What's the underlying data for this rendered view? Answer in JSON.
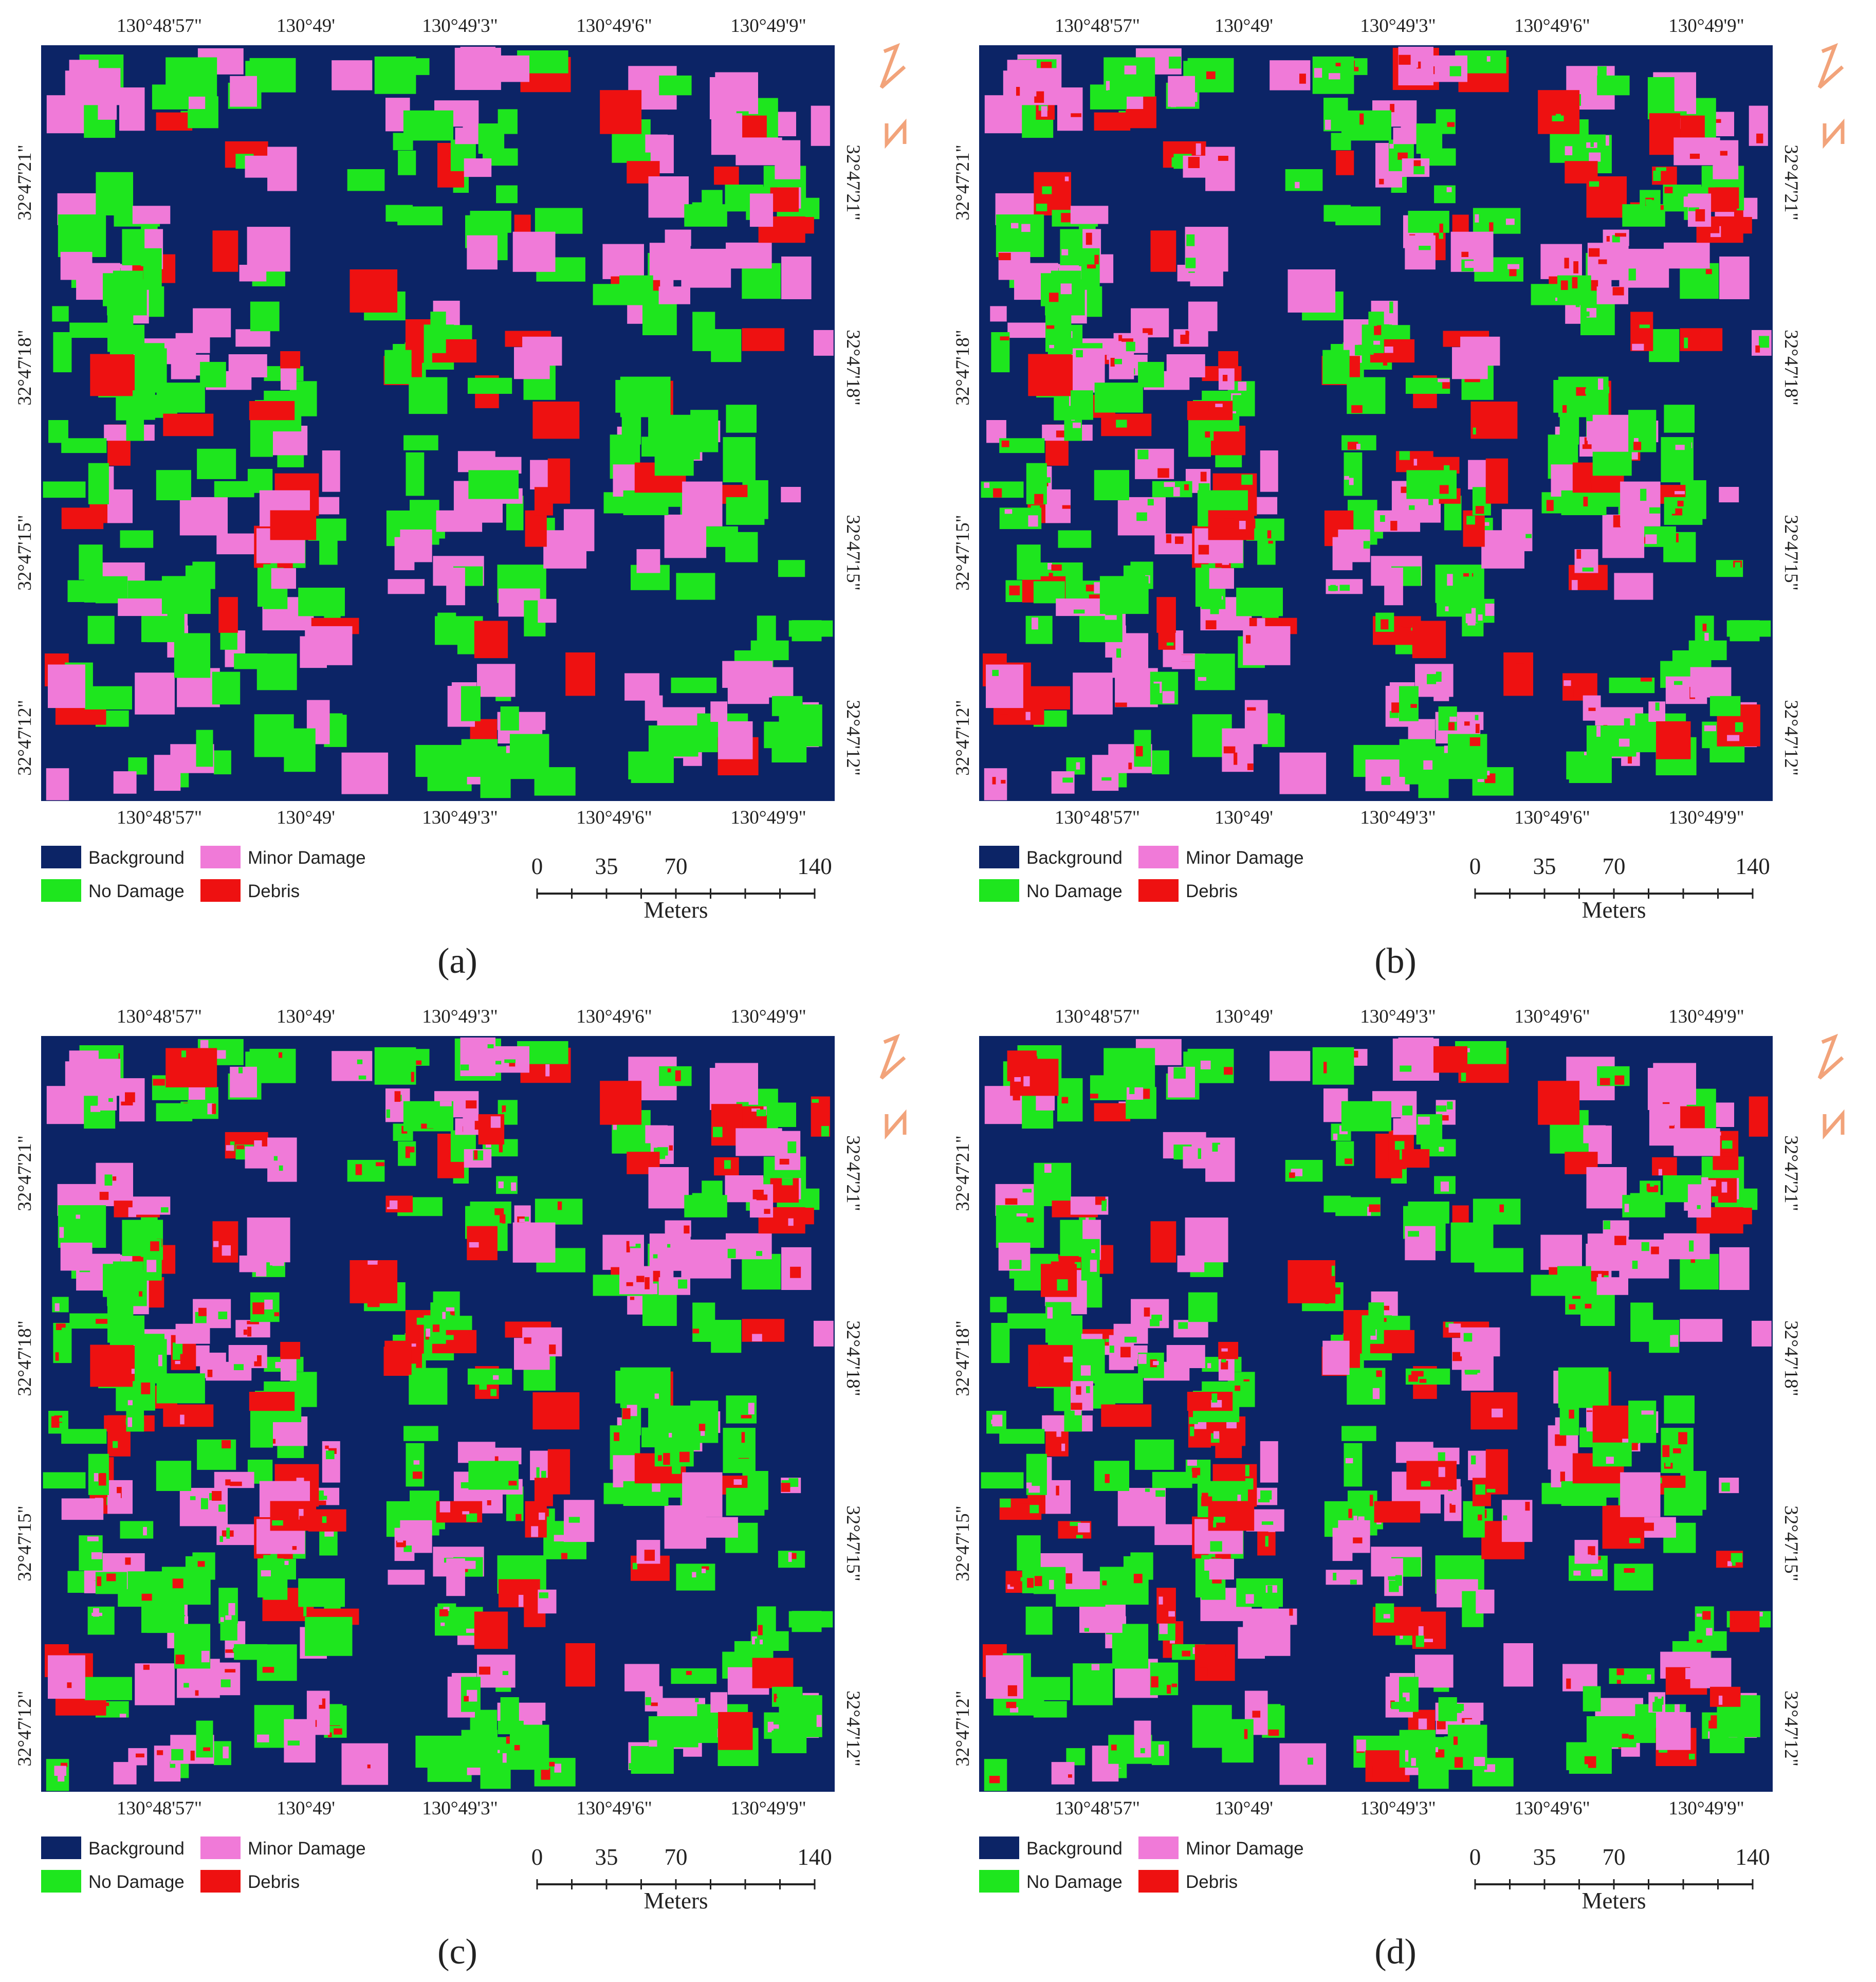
{
  "colors": {
    "background": "#0c2466",
    "no_damage": "#1ee61e",
    "minor_damage": "#f07ad8",
    "debris": "#ee1111",
    "north_arrow": "#f2a37a"
  },
  "legend": {
    "background": "Background",
    "minor_damage": "Minor Damage",
    "no_damage": "No Damage",
    "debris": "Debris"
  },
  "scale_bar": {
    "ticks": [
      "0",
      "35",
      "70",
      "140"
    ],
    "unit": "Meters"
  },
  "longitude_labels": [
    "130°48'57\"",
    "130°49'",
    "130°49'3\"",
    "130°49'6\"",
    "130°49'9\""
  ],
  "latitude_labels": [
    "32°47'21\"",
    "32°47'18\"",
    "32°47'15\"",
    "32°47'12\""
  ],
  "north_arrow_icon": "north-arrow-icon",
  "panels": [
    {
      "label": "(a)"
    },
    {
      "label": "(b)"
    },
    {
      "label": "(c)"
    },
    {
      "label": "(d)"
    }
  ]
}
